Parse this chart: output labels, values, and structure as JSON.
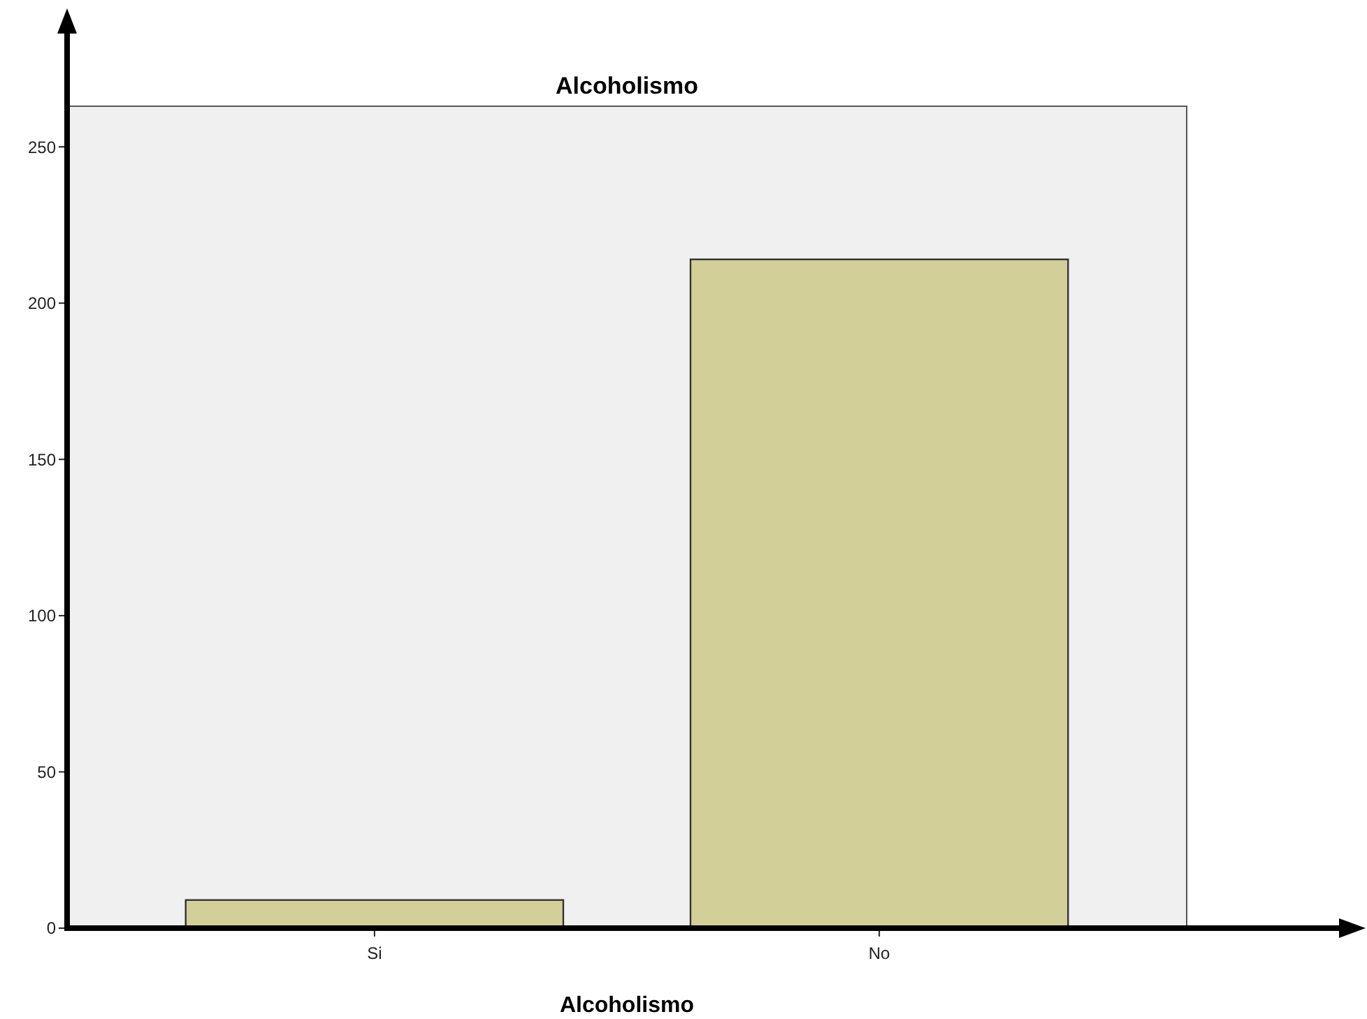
{
  "chart_data": {
    "type": "bar",
    "title": "Alcoholismo",
    "xlabel": "Alcoholismo",
    "categories": [
      "Si",
      "No"
    ],
    "values": [
      9,
      214
    ],
    "color": "#d3cf99",
    "ylim": [
      0,
      263
    ],
    "yticks": [
      0,
      50,
      100,
      150,
      200,
      250
    ]
  }
}
